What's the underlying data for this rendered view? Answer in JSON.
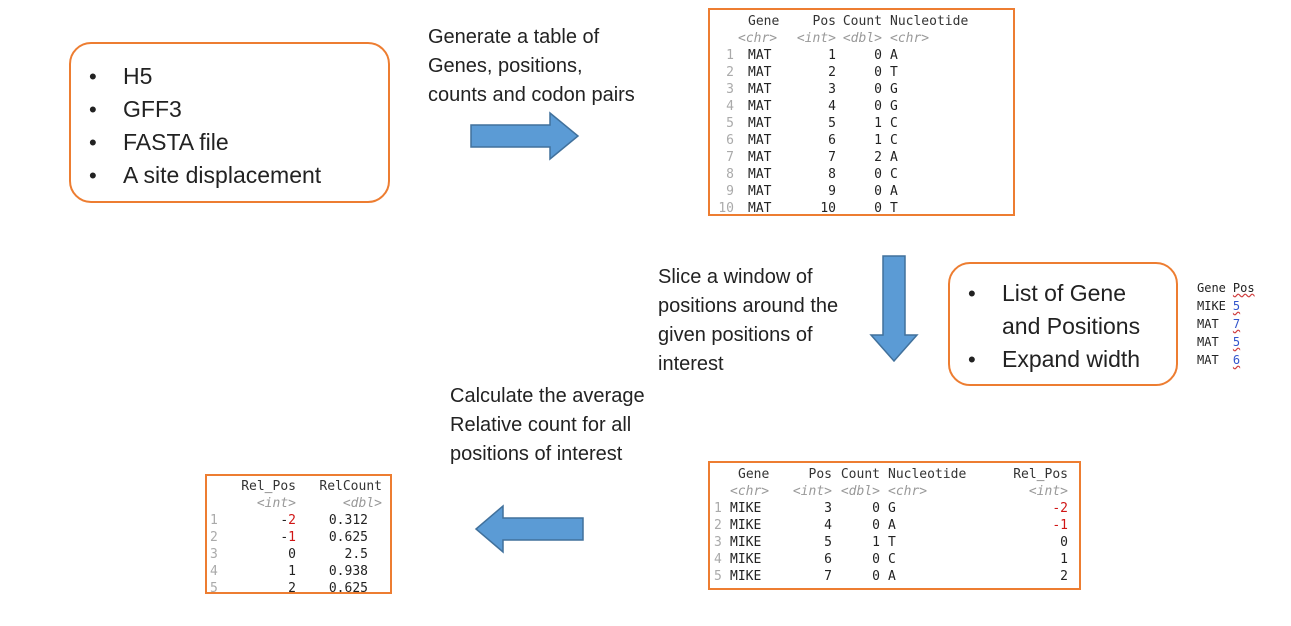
{
  "inputs_box": {
    "items": [
      "H5",
      "GFF3",
      "FASTA file",
      "A site displacement"
    ]
  },
  "step1_text": [
    "Generate a table of",
    "Genes, positions,",
    "counts and codon pairs"
  ],
  "table1": {
    "headers": [
      "Gene",
      "Pos",
      "Count",
      "Nucleotide"
    ],
    "types": [
      "<chr>",
      "<int>",
      "<dbl>",
      "<chr>"
    ],
    "rows": [
      [
        "1",
        "MAT",
        "1",
        "0",
        "A"
      ],
      [
        "2",
        "MAT",
        "2",
        "0",
        "T"
      ],
      [
        "3",
        "MAT",
        "3",
        "0",
        "G"
      ],
      [
        "4",
        "MAT",
        "4",
        "0",
        "G"
      ],
      [
        "5",
        "MAT",
        "5",
        "1",
        "C"
      ],
      [
        "6",
        "MAT",
        "6",
        "1",
        "C"
      ],
      [
        "7",
        "MAT",
        "7",
        "2",
        "A"
      ],
      [
        "8",
        "MAT",
        "8",
        "0",
        "C"
      ],
      [
        "9",
        "MAT",
        "9",
        "0",
        "A"
      ],
      [
        "10",
        "MAT",
        "10",
        "0",
        "T"
      ]
    ]
  },
  "step2_text": [
    "Slice a window of",
    "positions around the",
    "given positions of",
    "interest"
  ],
  "params_box": {
    "items": [
      "List of Gene and Positions",
      "Expand width"
    ]
  },
  "mini_table": {
    "headers": [
      "Gene",
      "Pos"
    ],
    "rows": [
      [
        "MIKE",
        "5"
      ],
      [
        "MAT",
        "7"
      ],
      [
        "MAT",
        "5"
      ],
      [
        "MAT",
        "6"
      ]
    ]
  },
  "step3_text": [
    "Calculate the average",
    "Relative count for all",
    "positions of interest"
  ],
  "table2": {
    "headers": [
      "Gene",
      "Pos",
      "Count",
      "Nucleotide",
      "Rel_Pos"
    ],
    "types": [
      "<chr>",
      "<int>",
      "<dbl>",
      "<chr>",
      "<int>"
    ],
    "rows": [
      [
        "1",
        "MIKE",
        "3",
        "0",
        "G",
        "-2"
      ],
      [
        "2",
        "MIKE",
        "4",
        "0",
        "A",
        "-1"
      ],
      [
        "3",
        "MIKE",
        "5",
        "1",
        "T",
        "0"
      ],
      [
        "4",
        "MIKE",
        "6",
        "0",
        "C",
        "1"
      ],
      [
        "5",
        "MIKE",
        "7",
        "0",
        "A",
        "2"
      ]
    ]
  },
  "table3": {
    "headers": [
      "Rel_Pos",
      "RelCount"
    ],
    "types": [
      "<int>",
      "<dbl>"
    ],
    "rows": [
      [
        "1",
        "-2",
        "0.312"
      ],
      [
        "2",
        "-1",
        "0.625"
      ],
      [
        "3",
        "0",
        "2.5"
      ],
      [
        "4",
        "1",
        "0.938"
      ],
      [
        "5",
        "2",
        "0.625"
      ]
    ]
  },
  "colors": {
    "box_border": "#ed7d31",
    "arrow_fill": "#5b9bd5",
    "arrow_stroke": "#41719c",
    "negative": "#d01515"
  }
}
